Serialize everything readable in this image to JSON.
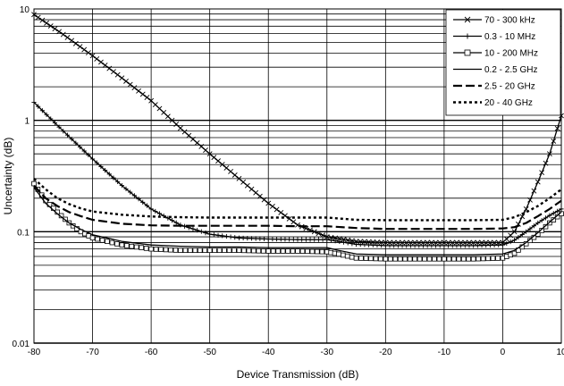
{
  "chart_data": {
    "type": "line",
    "title": "",
    "xlabel": "Device Transmission (dB)",
    "ylabel": "Uncertainty (dB)",
    "xlim": [
      -80,
      10
    ],
    "ylim": [
      0.01,
      10
    ],
    "yscale": "log",
    "grid": true,
    "legend_position": "top-right",
    "x_ticks": [
      -80,
      -70,
      -60,
      -50,
      -40,
      -30,
      -20,
      -10,
      0,
      10
    ],
    "x_tick_labels": [
      "-80",
      "-70",
      "-60",
      "-50",
      "-40",
      "-30",
      "-20",
      "-10",
      "0",
      "10"
    ],
    "y_ticks": [
      0.01,
      0.1,
      1,
      10
    ],
    "y_tick_labels": [
      "0.01",
      "0.1",
      "1",
      "10"
    ],
    "series": [
      {
        "name": "70 - 300 kHz",
        "style": "solid-x",
        "x": [
          -80,
          -75,
          -70,
          -65,
          -60,
          -55,
          -50,
          -45,
          -40,
          -35,
          -30,
          -25,
          -20,
          -15,
          -10,
          -5,
          0,
          2,
          4,
          6,
          8,
          10
        ],
        "y": [
          8.9,
          5.9,
          3.8,
          2.4,
          1.5,
          0.85,
          0.5,
          0.3,
          0.18,
          0.115,
          0.09,
          0.082,
          0.08,
          0.08,
          0.08,
          0.08,
          0.08,
          0.1,
          0.16,
          0.28,
          0.5,
          1.1
        ]
      },
      {
        "name": "0.3 - 10 MHz",
        "style": "solid-plus",
        "x": [
          -80,
          -75,
          -70,
          -65,
          -60,
          -55,
          -50,
          -45,
          -40,
          -35,
          -30,
          -25,
          -20,
          -15,
          -10,
          -5,
          0,
          2,
          4,
          6,
          8,
          10
        ],
        "y": [
          1.45,
          0.8,
          0.45,
          0.26,
          0.16,
          0.115,
          0.095,
          0.088,
          0.086,
          0.085,
          0.085,
          0.077,
          0.075,
          0.075,
          0.075,
          0.075,
          0.076,
          0.084,
          0.1,
          0.12,
          0.14,
          0.16
        ]
      },
      {
        "name": "10 - 200 MHz",
        "style": "solid-square",
        "x": [
          -80,
          -78,
          -76,
          -74,
          -72,
          -70,
          -65,
          -60,
          -55,
          -50,
          -45,
          -40,
          -35,
          -30,
          -28,
          -25,
          -20,
          -15,
          -10,
          -5,
          0,
          2,
          4,
          6,
          8,
          10
        ],
        "y": [
          0.27,
          0.19,
          0.15,
          0.12,
          0.1,
          0.088,
          0.076,
          0.07,
          0.068,
          0.068,
          0.068,
          0.067,
          0.067,
          0.066,
          0.063,
          0.058,
          0.057,
          0.057,
          0.057,
          0.057,
          0.058,
          0.064,
          0.078,
          0.095,
          0.12,
          0.145
        ]
      },
      {
        "name": "0.2 - 2.5 GHz",
        "style": "solid",
        "x": [
          -80,
          -78,
          -76,
          -74,
          -72,
          -70,
          -65,
          -60,
          -55,
          -50,
          -45,
          -40,
          -35,
          -30,
          -28,
          -25,
          -20,
          -15,
          -10,
          -5,
          0,
          2,
          4,
          6,
          8,
          10
        ],
        "y": [
          0.25,
          0.18,
          0.145,
          0.12,
          0.105,
          0.094,
          0.082,
          0.076,
          0.074,
          0.073,
          0.073,
          0.072,
          0.072,
          0.072,
          0.068,
          0.063,
          0.062,
          0.062,
          0.062,
          0.062,
          0.063,
          0.068,
          0.08,
          0.098,
          0.122,
          0.15
        ]
      },
      {
        "name": "2.5 - 20 GHz",
        "style": "long-dash",
        "x": [
          -80,
          -78,
          -76,
          -74,
          -72,
          -70,
          -65,
          -60,
          -55,
          -50,
          -45,
          -40,
          -35,
          -30,
          -25,
          -20,
          -15,
          -10,
          -5,
          0,
          2,
          4,
          6,
          8,
          10
        ],
        "y": [
          0.26,
          0.2,
          0.17,
          0.15,
          0.138,
          0.128,
          0.118,
          0.114,
          0.113,
          0.113,
          0.113,
          0.113,
          0.112,
          0.112,
          0.108,
          0.106,
          0.106,
          0.106,
          0.106,
          0.107,
          0.11,
          0.12,
          0.138,
          0.16,
          0.19
        ]
      },
      {
        "name": "20 - 40 GHz",
        "style": "dotted",
        "x": [
          -80,
          -78,
          -76,
          -74,
          -72,
          -70,
          -65,
          -60,
          -55,
          -50,
          -45,
          -40,
          -35,
          -30,
          -25,
          -20,
          -15,
          -10,
          -5,
          0,
          2,
          4,
          6,
          8,
          10
        ],
        "y": [
          0.3,
          0.24,
          0.2,
          0.177,
          0.162,
          0.152,
          0.142,
          0.137,
          0.135,
          0.134,
          0.134,
          0.134,
          0.134,
          0.134,
          0.128,
          0.127,
          0.127,
          0.127,
          0.127,
          0.128,
          0.135,
          0.15,
          0.17,
          0.2,
          0.24
        ]
      }
    ]
  }
}
